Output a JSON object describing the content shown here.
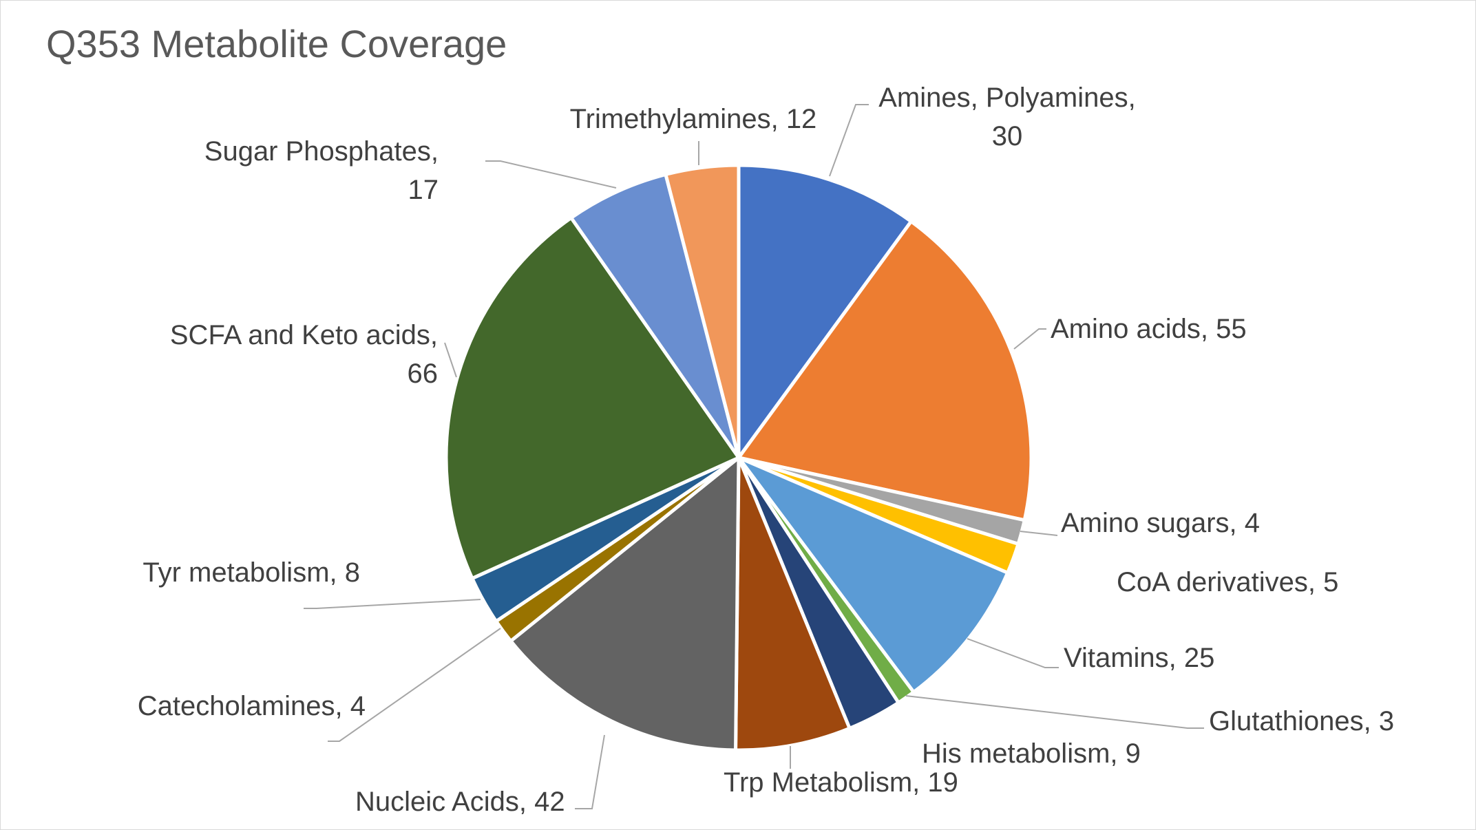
{
  "chart_data": {
    "type": "pie",
    "title": "Q353 Metabolite Coverage",
    "start_angle_deg": 0,
    "direction": "clockwise",
    "slices": [
      {
        "label": "Amines, Polyamines",
        "value": 30,
        "color": "#4472C4",
        "display_lines": [
          "Amines, Polyamines,",
          "30"
        ]
      },
      {
        "label": "Amino acids",
        "value": 55,
        "color": "#ED7D31",
        "display_lines": [
          "Amino acids, 55"
        ]
      },
      {
        "label": "Amino sugars",
        "value": 4,
        "color": "#A5A5A5",
        "display_lines": [
          "Amino sugars, 4"
        ]
      },
      {
        "label": "CoA derivatives",
        "value": 5,
        "color": "#FFC000",
        "display_lines": [
          "CoA derivatives, 5"
        ]
      },
      {
        "label": "Vitamins",
        "value": 25,
        "color": "#5B9BD5",
        "display_lines": [
          "Vitamins, 25"
        ]
      },
      {
        "label": "Glutathiones",
        "value": 3,
        "color": "#70AD47",
        "display_lines": [
          "Glutathiones, 3"
        ]
      },
      {
        "label": "His metabolism",
        "value": 9,
        "color": "#264478",
        "display_lines": [
          "His metabolism, 9"
        ]
      },
      {
        "label": "Trp Metabolism",
        "value": 19,
        "color": "#9E480E",
        "display_lines": [
          "Trp Metabolism, 19"
        ]
      },
      {
        "label": "Nucleic Acids",
        "value": 42,
        "color": "#636363",
        "display_lines": [
          "Nucleic Acids, 42"
        ]
      },
      {
        "label": "Catecholamines",
        "value": 4,
        "color": "#997300",
        "display_lines": [
          "Catecholamines, 4"
        ]
      },
      {
        "label": "Tyr metabolism",
        "value": 8,
        "color": "#255E91",
        "display_lines": [
          "Tyr metabolism, 8"
        ]
      },
      {
        "label": "SCFA and Keto acids",
        "value": 66,
        "color": "#43682B",
        "display_lines": [
          "SCFA and Keto acids,",
          "66"
        ]
      },
      {
        "label": "Sugar Phosphates",
        "value": 17,
        "color": "#698ED0",
        "display_lines": [
          "Sugar Phosphates,",
          "17"
        ]
      },
      {
        "label": "Trimethylamines",
        "value": 12,
        "color": "#F1975A",
        "display_lines": [
          "Trimethylamines, 12"
        ]
      }
    ]
  }
}
